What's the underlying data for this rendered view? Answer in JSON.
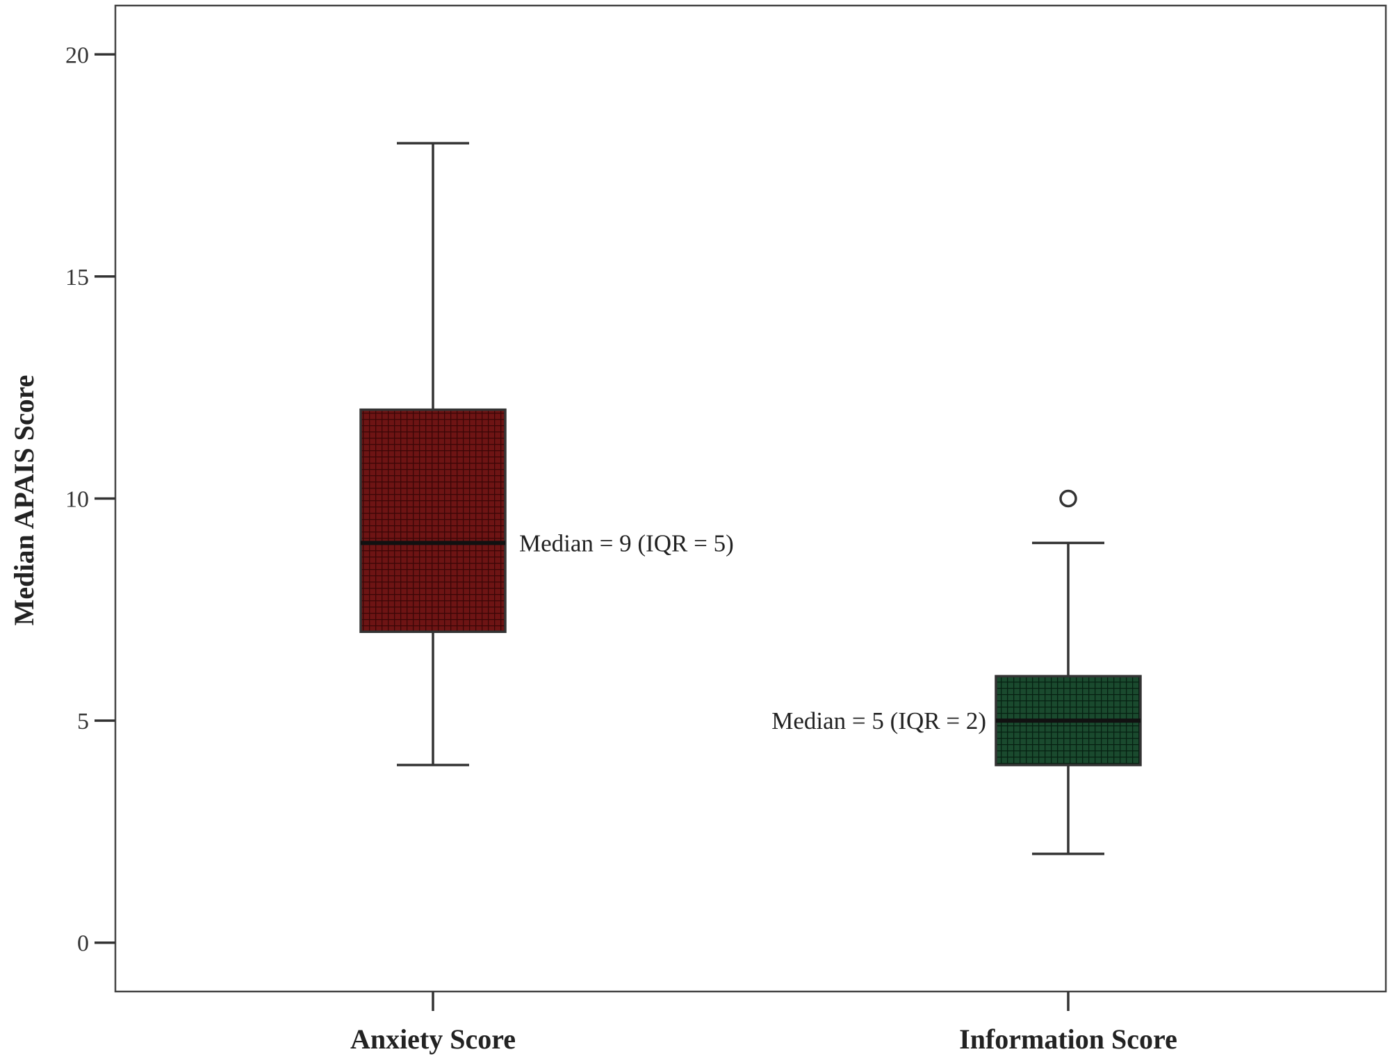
{
  "chart_data": {
    "type": "box",
    "title": "",
    "xlabel": "",
    "ylabel": "Median APAIS Score",
    "ylim": [
      -1.1,
      21.1
    ],
    "yticks": [
      0,
      5,
      10,
      15,
      20
    ],
    "categories": [
      "Anxiety Score",
      "Information Score"
    ],
    "boxes": [
      {
        "category": "Anxiety Score",
        "whisker_low": 4,
        "q1": 7,
        "median": 9,
        "q3": 12,
        "whisker_high": 18,
        "outliers": [],
        "color": "#6e1414",
        "annotation": "Median = 9 (IQR = 5)",
        "annotation_side": "right"
      },
      {
        "category": "Information Score",
        "whisker_low": 2,
        "q1": 4,
        "median": 5,
        "q3": 6,
        "whisker_high": 9,
        "outliers": [
          10
        ],
        "color": "#14422a",
        "annotation": "Median = 5 (IQR = 2)",
        "annotation_side": "left"
      }
    ],
    "grid": false,
    "legend": "none"
  }
}
